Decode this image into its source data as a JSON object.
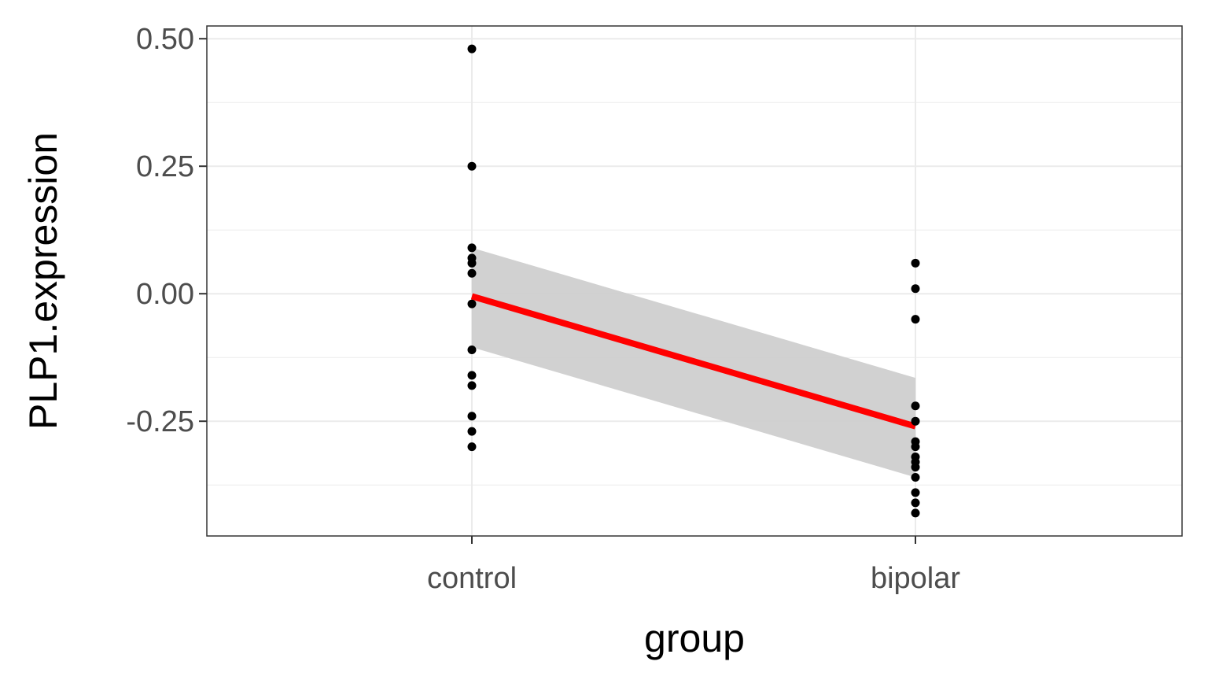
{
  "chart_data": {
    "type": "scatter",
    "xlabel": "group",
    "ylabel": "PLP1.expression",
    "categories": [
      "control",
      "bipolar"
    ],
    "ylim": [
      -0.475,
      0.525
    ],
    "y_ticks": [
      "0.50",
      "0.25",
      "0.00",
      "-0.25"
    ],
    "y_tick_values": [
      0.5,
      0.25,
      0.0,
      -0.25
    ],
    "grid": true,
    "series": [
      {
        "category": "control",
        "values": [
          0.48,
          0.25,
          0.09,
          0.07,
          0.06,
          0.04,
          -0.02,
          -0.11,
          -0.16,
          -0.18,
          -0.24,
          -0.27,
          -0.3
        ]
      },
      {
        "category": "bipolar",
        "values": [
          0.06,
          0.01,
          -0.05,
          -0.22,
          -0.25,
          -0.29,
          -0.3,
          -0.32,
          -0.33,
          -0.34,
          -0.36,
          -0.39,
          -0.41,
          -0.43
        ]
      }
    ],
    "fit_line": {
      "color": "#ff0000",
      "values": [
        -0.005,
        -0.26
      ],
      "ci_lower": [
        -0.105,
        -0.36
      ],
      "ci_upper": [
        0.09,
        -0.165
      ],
      "ci_color": "#cfcfcf"
    }
  }
}
